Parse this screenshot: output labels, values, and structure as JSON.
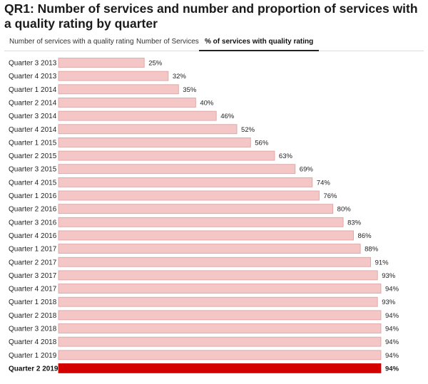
{
  "header": {
    "title": "QR1: Number of services and number and proportion of services with a quality rating by quarter"
  },
  "tabs": [
    {
      "label": "Number of services with a quality rating",
      "active": false
    },
    {
      "label": "Number of Services",
      "active": false
    },
    {
      "label": "% of services with quality rating",
      "active": true
    }
  ],
  "colors": {
    "bar": "#f4c6c6",
    "bar_border": "#d9a0a0",
    "highlight": "#d40000"
  },
  "chart_data": {
    "type": "bar",
    "orientation": "horizontal",
    "categories": [
      "Quarter 3 2013",
      "Quarter 4 2013",
      "Quarter 1 2014",
      "Quarter 2 2014",
      "Quarter 3 2014",
      "Quarter 4 2014",
      "Quarter 1 2015",
      "Quarter 2 2015",
      "Quarter 3 2015",
      "Quarter 4 2015",
      "Quarter 1 2016",
      "Quarter 2 2016",
      "Quarter 3 2016",
      "Quarter 4 2016",
      "Quarter 1 2017",
      "Quarter 2 2017",
      "Quarter 3 2017",
      "Quarter 4 2017",
      "Quarter 1 2018",
      "Quarter 2 2018",
      "Quarter 3 2018",
      "Quarter 4 2018",
      "Quarter 1 2019",
      "Quarter 2 2019"
    ],
    "values": [
      25,
      32,
      35,
      40,
      46,
      52,
      56,
      63,
      69,
      74,
      76,
      80,
      83,
      86,
      88,
      91,
      93,
      94,
      93,
      94,
      94,
      94,
      94,
      94
    ],
    "value_labels": [
      "25%",
      "32%",
      "35%",
      "40%",
      "46%",
      "52%",
      "56%",
      "63%",
      "69%",
      "74%",
      "76%",
      "80%",
      "83%",
      "86%",
      "88%",
      "91%",
      "93%",
      "94%",
      "93%",
      "94%",
      "94%",
      "94%",
      "94%",
      "94%"
    ],
    "highlight_index": 23,
    "xlim": [
      0,
      94
    ],
    "grid": false,
    "title": "",
    "xlabel": "",
    "ylabel": ""
  }
}
